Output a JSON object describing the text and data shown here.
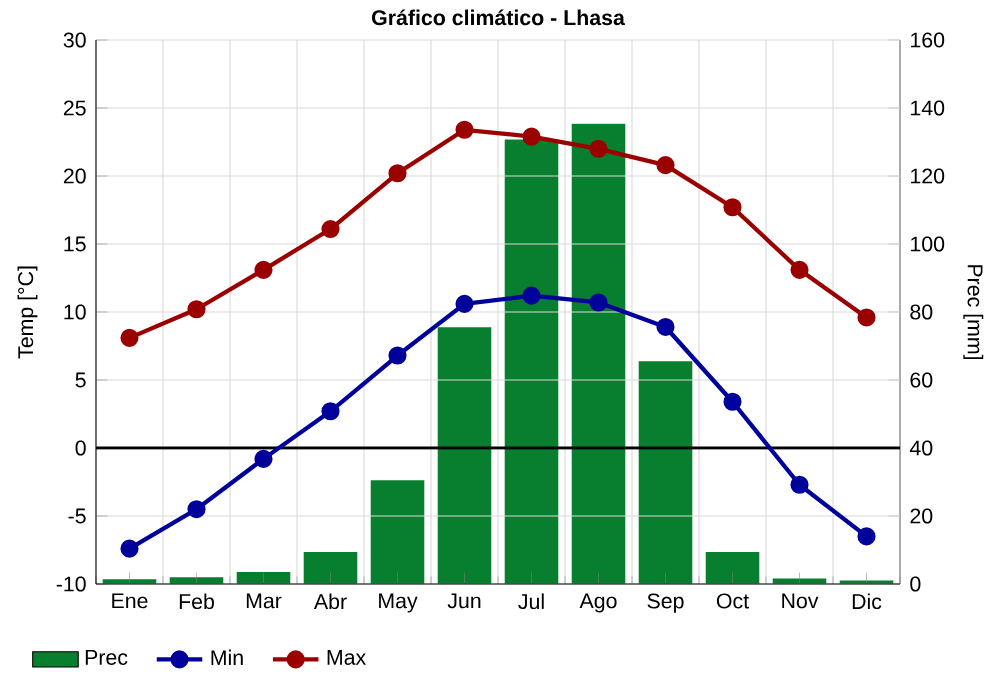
{
  "chart_data": {
    "type": "line",
    "title": "Gráfico climático - Lhasa",
    "ylabel": "Temp [°C]",
    "y2label": "Prec [mm]",
    "categories": [
      "Ene",
      "Feb",
      "Mar",
      "Abr",
      "May",
      "Jun",
      "Jul",
      "Ago",
      "Sep",
      "Oct",
      "Nov",
      "Dic"
    ],
    "series": [
      {
        "name": "Prec",
        "type": "bar",
        "axis": "y2",
        "color": "#077f2e",
        "values": [
          1.4,
          2,
          3.5,
          9.4,
          30.5,
          75.5,
          130.7,
          135.4,
          65.5,
          9.4,
          1.6,
          1
        ]
      },
      {
        "name": "Min",
        "color": "#00009b",
        "values": [
          -7.4,
          -4.5,
          -0.8,
          2.7,
          6.8,
          10.6,
          11.2,
          10.7,
          8.9,
          3.4,
          -2.7,
          -6.5
        ]
      },
      {
        "name": "Max",
        "color": "#9b0000",
        "values": [
          8.1,
          10.2,
          13.1,
          16.1,
          20.2,
          23.4,
          22.9,
          22.0,
          20.8,
          17.7,
          13.1,
          9.6
        ]
      }
    ],
    "ylim": [
      -10,
      30
    ],
    "yticks": [
      -10,
      -5,
      0,
      5,
      10,
      15,
      20,
      25,
      30
    ],
    "y2lim": [
      0,
      160
    ],
    "y2ticks": [
      0,
      20,
      40,
      60,
      80,
      100,
      120,
      140,
      160
    ],
    "ref_lines": [
      {
        "axis": "y",
        "value": 0,
        "color": "#000000"
      }
    ],
    "grid": true,
    "legend": "bottom left",
    "marker": "circle",
    "line_style": "solid"
  }
}
